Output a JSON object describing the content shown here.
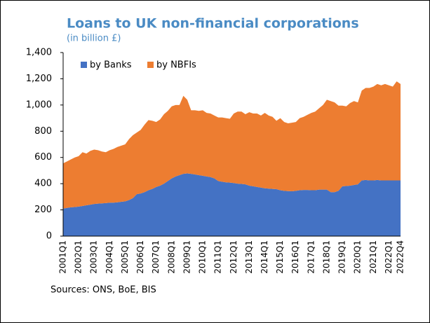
{
  "chart_data": {
    "type": "stacked-area",
    "title": "Loans to UK non-financial corporations",
    "subtitle": "(in billion £)",
    "source": "Sources: ONS, BoE, BIS",
    "legend": "top-left",
    "categories": [
      "2001Q1",
      null,
      null,
      null,
      "2002Q1",
      null,
      null,
      null,
      "2003Q1",
      null,
      null,
      null,
      "2004Q1",
      null,
      null,
      null,
      "2005Q1",
      null,
      null,
      null,
      "2006Q1",
      null,
      null,
      null,
      "2007Q1",
      null,
      null,
      null,
      "2008Q1",
      null,
      null,
      null,
      "2009Q1",
      null,
      null,
      null,
      "2010Q1",
      null,
      null,
      null,
      "2011Q1",
      null,
      null,
      null,
      "2012Q1",
      null,
      null,
      null,
      "2013Q1",
      null,
      null,
      null,
      "2014Q1",
      null,
      null,
      null,
      "2015Q1",
      null,
      null,
      null,
      "2016Q1",
      null,
      null,
      null,
      "2017Q1",
      null,
      null,
      null,
      "2018Q1",
      null,
      null,
      null,
      "2019Q1",
      null,
      null,
      null,
      "2020Q1",
      null,
      null,
      null,
      "2021Q1",
      null,
      null,
      null,
      "2022Q1",
      null,
      null,
      "2022Q4"
    ],
    "series": [
      {
        "name": "by Banks",
        "color": "#4472c4",
        "values": [
          210,
          215,
          220,
          222,
          225,
          230,
          235,
          240,
          245,
          248,
          250,
          252,
          255,
          255,
          258,
          262,
          265,
          275,
          290,
          320,
          325,
          335,
          350,
          360,
          375,
          385,
          400,
          420,
          440,
          455,
          465,
          475,
          478,
          475,
          470,
          465,
          460,
          455,
          450,
          440,
          420,
          415,
          410,
          408,
          405,
          400,
          398,
          395,
          385,
          380,
          375,
          370,
          365,
          362,
          360,
          358,
          350,
          345,
          343,
          342,
          345,
          350,
          352,
          352,
          350,
          350,
          355,
          355,
          355,
          335,
          335,
          345,
          380,
          382,
          385,
          390,
          395,
          425,
          428,
          425,
          425,
          428,
          425,
          425,
          425,
          425,
          425,
          425
        ]
      },
      {
        "name": "by NBFIs",
        "color": "#ed7d31",
        "values": [
          345,
          355,
          365,
          378,
          385,
          410,
          395,
          410,
          415,
          407,
          395,
          388,
          400,
          410,
          422,
          428,
          435,
          465,
          480,
          470,
          485,
          515,
          535,
          520,
          495,
          505,
          530,
          535,
          550,
          545,
          535,
          595,
          562,
          485,
          490,
          490,
          500,
          485,
          485,
          480,
          485,
          490,
          490,
          487,
          530,
          550,
          552,
          535,
          560,
          555,
          560,
          550,
          575,
          558,
          550,
          522,
          550,
          525,
          517,
          523,
          525,
          550,
          558,
          573,
          590,
          600,
          620,
          645,
          685,
          695,
          685,
          650,
          615,
          608,
          630,
          640,
          625,
          685,
          702,
          705,
          715,
          732,
          725,
          735,
          725,
          715,
          755,
          735
        ]
      }
    ],
    "ylim": [
      0,
      1400
    ],
    "yticks": [
      0,
      200,
      400,
      600,
      800,
      {
        "value": 1000,
        "label": "1,000"
      },
      {
        "value": 1200,
        "label": "1,200"
      },
      {
        "value": 1400,
        "label": "1,400"
      }
    ]
  }
}
